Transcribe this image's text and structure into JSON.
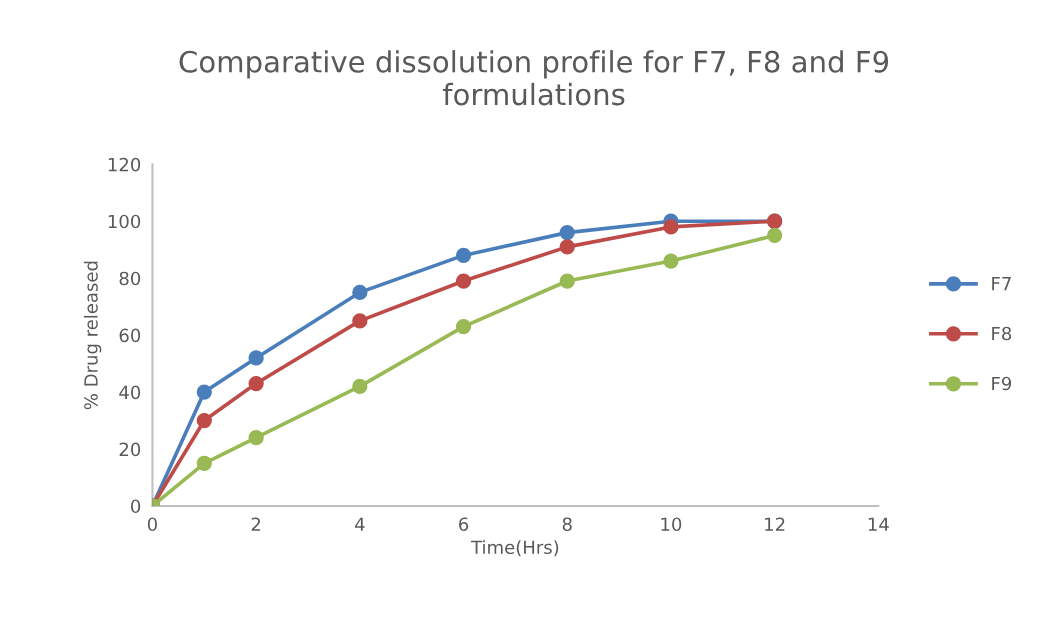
{
  "chart_data": {
    "type": "line",
    "title": "Comparative dissolution profile for F7, F8 and F9 formulations",
    "xlabel": "Time(Hrs)",
    "ylabel": "% Drug released",
    "x": [
      0,
      1,
      2,
      4,
      6,
      8,
      10,
      12
    ],
    "series": [
      {
        "name": "F7",
        "color": "#4a7ebb",
        "values": [
          0,
          40,
          52,
          75,
          88,
          96,
          100,
          100
        ]
      },
      {
        "name": "F8",
        "color": "#be4b48",
        "values": [
          0,
          30,
          43,
          65,
          79,
          91,
          98,
          100
        ]
      },
      {
        "name": "F9",
        "color": "#98b954",
        "values": [
          0,
          15,
          24,
          42,
          63,
          79,
          86,
          95
        ]
      }
    ],
    "xlim": [
      0,
      14
    ],
    "xticks": [
      0,
      2,
      4,
      6,
      8,
      10,
      12,
      14
    ],
    "ylim": [
      0,
      120
    ],
    "yticks": [
      0,
      20,
      40,
      60,
      80,
      100,
      120
    ],
    "grid": false,
    "legend": "right",
    "marker": "circle",
    "line_style": "solid"
  }
}
